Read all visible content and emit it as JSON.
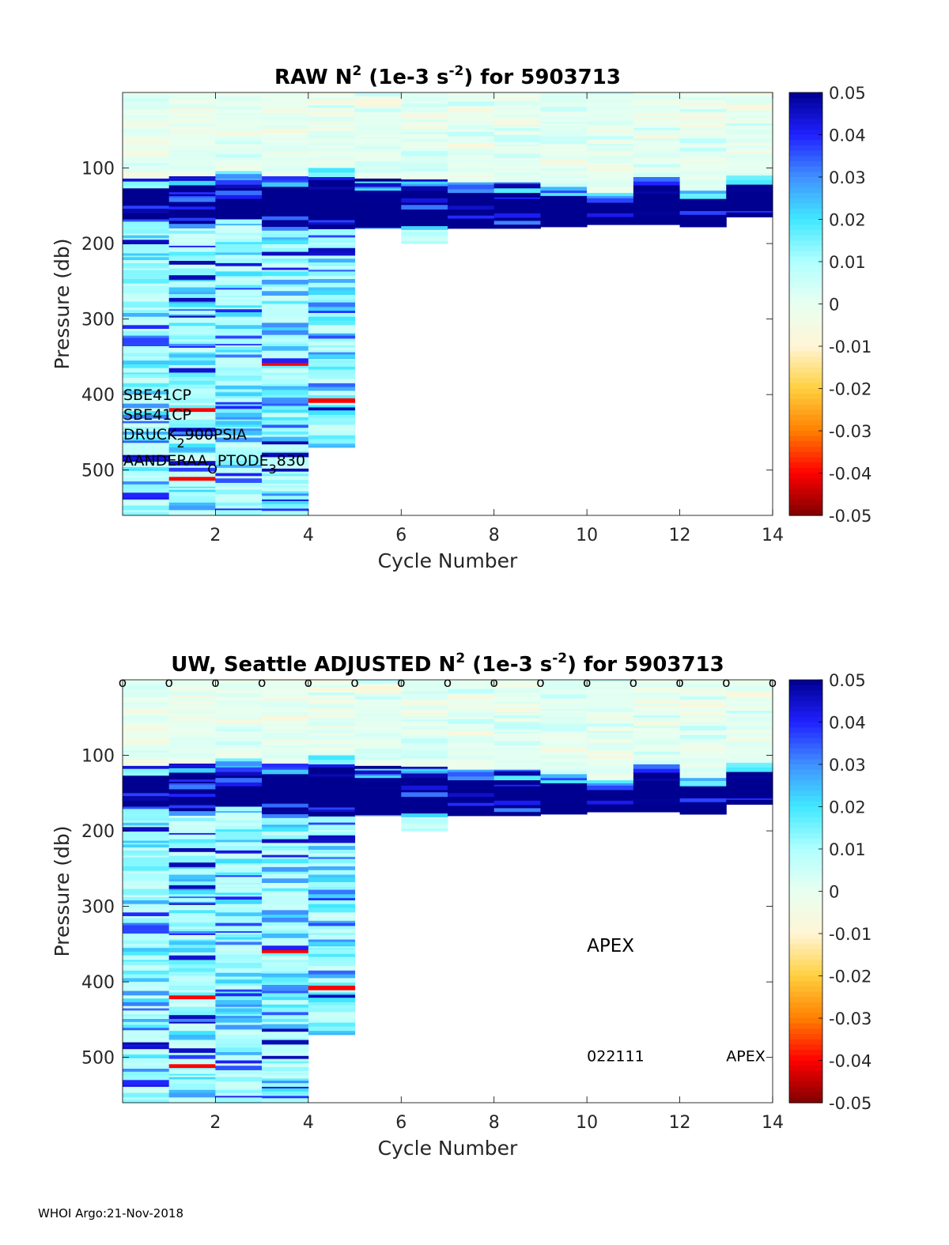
{
  "footer": "WHOI Argo:21-Nov-2018",
  "colors": {
    "scale": [
      "#800000",
      "#ff0000",
      "#ff8000",
      "#ffd040",
      "#fff5d6",
      "#e8fff0",
      "#b0ffff",
      "#40e8ff",
      "#4090ff",
      "#2020ff",
      "#000090"
    ],
    "axis": "#000000"
  },
  "chart_data": [
    {
      "type": "heatmap",
      "title": "RAW N",
      "title_sup": "2",
      "title_mid": " (1e-3 s",
      "title_sup2": "-2",
      "title_end": ") for 5903713",
      "xlabel": "Cycle Number",
      "ylabel": "Pressure (db)",
      "xlim": [
        0,
        14
      ],
      "ylim": [
        0,
        560
      ],
      "y_reversed": true,
      "xticks": [
        2,
        4,
        6,
        8,
        10,
        12,
        14
      ],
      "yticks": [
        100,
        200,
        300,
        400,
        500
      ],
      "colorbar": {
        "range": [
          -0.05,
          0.05
        ],
        "ticks": [
          "0.05",
          "0.04",
          "0.03",
          "0.02",
          "0.01",
          "0",
          "-0.01",
          "-0.02",
          "-0.03",
          "-0.04",
          "-0.05"
        ]
      },
      "annotations": [
        {
          "text": "SBE41CP"
        },
        {
          "text": "SBE41CP"
        },
        {
          "text": "DRUCK",
          "sub": "2",
          "rest": "900PSIA"
        },
        {
          "text": "AANDERAA",
          "sub": "O",
          "rest": "PTODE",
          "sub2": "3",
          "rest2": "830"
        }
      ],
      "cycles": [
        {
          "cycle": 1,
          "max_pressure": 560,
          "strat_top": 126,
          "strat_bottom": 168
        },
        {
          "cycle": 2,
          "max_pressure": 560,
          "strat_top": 123,
          "strat_bottom": 172
        },
        {
          "cycle": 3,
          "max_pressure": 560,
          "strat_top": 118,
          "strat_bottom": 165
        },
        {
          "cycle": 4,
          "max_pressure": 560,
          "strat_top": 125,
          "strat_bottom": 175
        },
        {
          "cycle": 5,
          "max_pressure": 470,
          "strat_top": 113,
          "strat_bottom": 180
        },
        {
          "cycle": 6,
          "max_pressure": 180,
          "strat_top": 128,
          "strat_bottom": 180
        },
        {
          "cycle": 7,
          "max_pressure": 200,
          "strat_top": 126,
          "strat_bottom": 175
        },
        {
          "cycle": 8,
          "max_pressure": 180,
          "strat_top": 132,
          "strat_bottom": 180
        },
        {
          "cycle": 9,
          "max_pressure": 180,
          "strat_top": 132,
          "strat_bottom": 180
        },
        {
          "cycle": 10,
          "max_pressure": 178,
          "strat_top": 136,
          "strat_bottom": 178
        },
        {
          "cycle": 11,
          "max_pressure": 175,
          "strat_top": 145,
          "strat_bottom": 175
        },
        {
          "cycle": 12,
          "max_pressure": 175,
          "strat_top": 123,
          "strat_bottom": 175
        },
        {
          "cycle": 13,
          "max_pressure": 178,
          "strat_top": 140,
          "strat_bottom": 178
        },
        {
          "cycle": 14,
          "max_pressure": 165,
          "strat_top": 122,
          "strat_bottom": 165
        }
      ]
    },
    {
      "type": "heatmap",
      "title": "UW, Seattle  ADJUSTED N",
      "title_sup": "2",
      "title_mid": " (1e-3 s",
      "title_sup2": "-2",
      "title_end": ") for 5903713",
      "xlabel": "Cycle Number",
      "ylabel": "Pressure (db)",
      "xlim": [
        0,
        14
      ],
      "ylim": [
        0,
        560
      ],
      "y_reversed": true,
      "xticks": [
        2,
        4,
        6,
        8,
        10,
        12,
        14
      ],
      "yticks": [
        100,
        200,
        300,
        400,
        500
      ],
      "colorbar": {
        "range": [
          -0.05,
          0.05
        ],
        "ticks": [
          "0.05",
          "0.04",
          "0.03",
          "0.02",
          "0.01",
          "0",
          "-0.01",
          "-0.02",
          "-0.03",
          "-0.04",
          "-0.05"
        ]
      },
      "marker_text": "o",
      "marker_cycles": [
        1,
        2,
        3,
        4,
        5,
        6,
        7,
        8,
        9,
        10,
        11,
        12,
        13,
        14,
        15
      ],
      "annotations": [
        {
          "text": "APEX",
          "kind": "large",
          "x": 10,
          "y": 360
        },
        {
          "text": "022111",
          "kind": "small",
          "x": 10,
          "y": 505
        },
        {
          "text": "APEX",
          "kind": "small",
          "x": 13,
          "y": 505
        }
      ],
      "cycles": [
        {
          "cycle": 1,
          "max_pressure": 560,
          "strat_top": 126,
          "strat_bottom": 168
        },
        {
          "cycle": 2,
          "max_pressure": 560,
          "strat_top": 123,
          "strat_bottom": 172
        },
        {
          "cycle": 3,
          "max_pressure": 560,
          "strat_top": 118,
          "strat_bottom": 165
        },
        {
          "cycle": 4,
          "max_pressure": 560,
          "strat_top": 125,
          "strat_bottom": 175
        },
        {
          "cycle": 5,
          "max_pressure": 470,
          "strat_top": 113,
          "strat_bottom": 180
        },
        {
          "cycle": 6,
          "max_pressure": 180,
          "strat_top": 128,
          "strat_bottom": 180
        },
        {
          "cycle": 7,
          "max_pressure": 200,
          "strat_top": 126,
          "strat_bottom": 175
        },
        {
          "cycle": 8,
          "max_pressure": 180,
          "strat_top": 132,
          "strat_bottom": 180
        },
        {
          "cycle": 9,
          "max_pressure": 180,
          "strat_top": 132,
          "strat_bottom": 180
        },
        {
          "cycle": 10,
          "max_pressure": 178,
          "strat_top": 136,
          "strat_bottom": 178
        },
        {
          "cycle": 11,
          "max_pressure": 175,
          "strat_top": 145,
          "strat_bottom": 175
        },
        {
          "cycle": 12,
          "max_pressure": 175,
          "strat_top": 123,
          "strat_bottom": 175
        },
        {
          "cycle": 13,
          "max_pressure": 178,
          "strat_top": 140,
          "strat_bottom": 178
        },
        {
          "cycle": 14,
          "max_pressure": 165,
          "strat_top": 122,
          "strat_bottom": 165
        }
      ]
    }
  ]
}
